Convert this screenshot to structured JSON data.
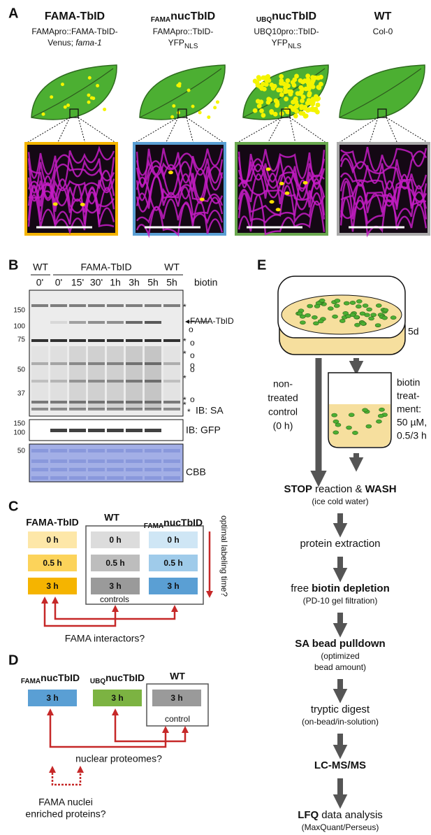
{
  "panel_a": {
    "label": "A",
    "columns": [
      {
        "title": "FAMA-TbID",
        "lines": [
          "FAMApro::FAMA-TbID-",
          "Venus;",
          "fama-1"
        ]
      },
      {
        "title_sub": "FAMA",
        "title": "nucTbID",
        "lines": [
          "FAMApro::TbID-",
          "YFP",
          "NLS"
        ]
      },
      {
        "title_sub": "UBQ",
        "title": "nucTbID",
        "lines": [
          "UBQ10pro::TbID-",
          "YFP",
          "NLS"
        ]
      },
      {
        "title": "WT",
        "lines": [
          "Col-0"
        ]
      }
    ]
  },
  "panel_b": {
    "label": "B",
    "groups": [
      "WT",
      "FAMA-TbID",
      "WT"
    ],
    "times": [
      "0'",
      "0'",
      "15'",
      "30'",
      "1h",
      "3h",
      "5h",
      "5h"
    ],
    "treatment": "biotin",
    "sa_markers": [
      "150",
      "100",
      "75",
      "50",
      "37"
    ],
    "band_label": "FAMA-TbID",
    "sa_label": "IB: SA",
    "side_marks": [
      "*",
      "o",
      "*",
      "o",
      "*",
      "o",
      "o",
      "o",
      "*",
      "*",
      "o",
      "*",
      "*"
    ],
    "gfp_markers": [
      "150",
      "100"
    ],
    "gfp_label": "IB: GFP",
    "cbb_marker": "50",
    "cbb_label": "CBB"
  },
  "panel_c": {
    "label": "C",
    "headers": [
      {
        "title": "FAMA-TbID"
      },
      {
        "title": "WT"
      },
      {
        "title_sub": "FAMA",
        "title": "nucTbID"
      }
    ],
    "times": [
      "0 h",
      "0.5 h",
      "3 h"
    ],
    "controls": "controls",
    "side": "optimal labeling time?",
    "bottom": "FAMA interactors?"
  },
  "panel_d": {
    "label": "D",
    "headers": [
      {
        "title_sub": "FAMA",
        "title": "nucTbID"
      },
      {
        "title_sub": "UBQ",
        "title": "nucTbID"
      },
      {
        "title": "WT"
      }
    ],
    "time": "3 h",
    "control": "control",
    "middle": "nuclear proteomes?",
    "bottom": [
      "FAMA nuclei",
      "enriched proteins?"
    ]
  },
  "panel_e": {
    "label": "E",
    "age": "5d",
    "control": [
      "non-",
      "treated",
      "control",
      "(0 h)"
    ],
    "treatment": [
      "biotin",
      "treat-",
      "ment:",
      "50 µM,",
      "0.5/3 h"
    ],
    "steps": [
      {
        "parts": [
          {
            "text": "STOP",
            "bold": true
          },
          {
            "text": "reaction &"
          },
          {
            "text": "WASH",
            "bold": true
          }
        ],
        "notes": [
          "(ice cold water)"
        ]
      },
      {
        "parts": [
          {
            "text": "protein extraction"
          }
        ],
        "notes": []
      },
      {
        "parts": [
          {
            "text": "free"
          },
          {
            "text": "biotin depletion",
            "bold": true
          }
        ],
        "notes": [
          "(PD-10 gel filtration)"
        ]
      },
      {
        "parts": [
          {
            "text": "SA bead pulldown",
            "bold": true
          }
        ],
        "notes": [
          "(optimized",
          "bead amount)"
        ]
      },
      {
        "parts": [
          {
            "text": "tryptic digest"
          }
        ],
        "notes": [
          "(on-bead/in-solution)"
        ]
      },
      {
        "parts": [
          {
            "text": "LC-MS/MS",
            "bold": true
          }
        ],
        "notes": []
      },
      {
        "parts": [
          {
            "text": "LFQ",
            "bold": true
          },
          {
            "text": "data analysis"
          }
        ],
        "notes": [
          "(MaxQuant/Perseus)"
        ]
      }
    ]
  }
}
